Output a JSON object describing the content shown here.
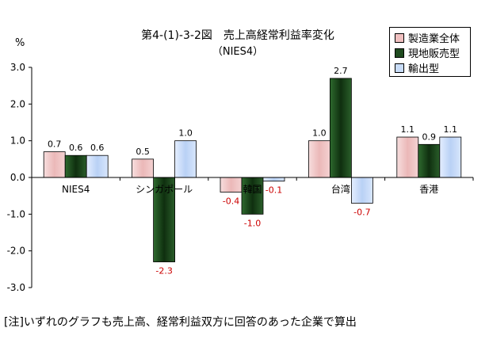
{
  "chart_data": {
    "type": "bar",
    "title": "第4-(1)-3-2図　売上高経常利益率変化",
    "subtitle": "（NIES4）",
    "ylabel": "%",
    "categories": [
      "NIES4",
      "シンガポール",
      "韓国",
      "台湾",
      "香港"
    ],
    "series": [
      {
        "name": "製造業全体",
        "color": "#f0c0c0",
        "values": [
          0.7,
          0.5,
          -0.4,
          1.0,
          1.1
        ],
        "labels": [
          "0.7",
          "0.5",
          "-0.4",
          "1.0",
          "1.1"
        ]
      },
      {
        "name": "現地販売型",
        "color": "#1f4a1f",
        "values": [
          0.6,
          -2.3,
          -1.0,
          2.7,
          0.9
        ],
        "labels": [
          "0.6",
          "-2.3",
          "-1.0",
          "2.7",
          "0.9"
        ]
      },
      {
        "name": "輸出型",
        "color": "#c8dcf8",
        "values": [
          0.6,
          1.0,
          -0.1,
          -0.7,
          1.1
        ],
        "labels": [
          "0.6",
          "1.0",
          "-0.1",
          "-0.7",
          "1.1"
        ]
      }
    ],
    "ylim": [
      -3.0,
      3.0
    ],
    "yticks": [
      "3.0",
      "2.0",
      "1.0",
      "0.0",
      "-1.0",
      "-2.0",
      "-3.0"
    ],
    "ytick_values": [
      3,
      2,
      1,
      0,
      -1,
      -2,
      -3
    ],
    "grid": false,
    "legend_position": "top-right",
    "negative_label_color": "#cc0000"
  },
  "note": "[注]いずれのグラフも売上高、経常利益双方に回答のあった企業で算出"
}
